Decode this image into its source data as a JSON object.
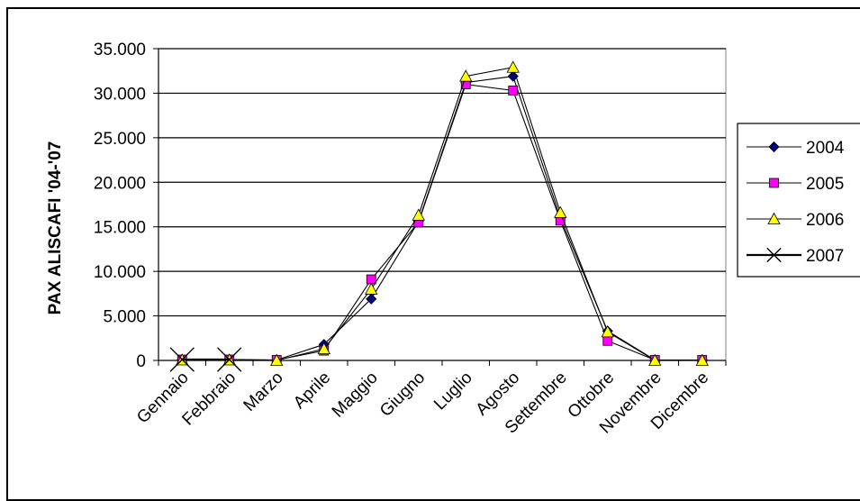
{
  "chart_data": {
    "type": "line",
    "title": "",
    "xlabel": "",
    "ylabel": "PAX ALISCAFI '04-'07",
    "categories": [
      "Gennaio",
      "Febbraio",
      "Marzo",
      "Aprile",
      "Maggio",
      "Giugno",
      "Luglio",
      "Agosto",
      "Settembre",
      "Ottobre",
      "Novembre",
      "Dicembre"
    ],
    "ylim": [
      0,
      35000
    ],
    "yticks": [
      0,
      5000,
      10000,
      15000,
      20000,
      25000,
      30000,
      35000
    ],
    "ytick_labels": [
      "0",
      "5.000",
      "10.000",
      "15.000",
      "20.000",
      "25.000",
      "30.000",
      "35.000"
    ],
    "grid": "horizontal",
    "legend": "right",
    "series": [
      {
        "name": "2004",
        "marker": "diamond",
        "color": "#000080",
        "line_color": "#000000",
        "values": [
          100,
          100,
          50,
          1800,
          6900,
          15600,
          31200,
          31900,
          16000,
          3300,
          50,
          50
        ]
      },
      {
        "name": "2005",
        "marker": "square",
        "color": "#FF00FF",
        "line_color": "#000000",
        "values": [
          100,
          100,
          50,
          1100,
          9100,
          15500,
          31000,
          30300,
          15700,
          2200,
          50,
          50
        ]
      },
      {
        "name": "2006",
        "marker": "triangle",
        "color": "#FFFF00",
        "line_color": "#000000",
        "values": [
          50,
          50,
          0,
          1300,
          8000,
          16300,
          31900,
          32900,
          16600,
          3200,
          0,
          0
        ]
      },
      {
        "name": "2007",
        "marker": "x",
        "color": "#000000",
        "line_color": "#000000",
        "values": [
          100,
          100,
          null,
          null,
          null,
          null,
          null,
          null,
          null,
          null,
          null,
          null
        ]
      }
    ]
  }
}
